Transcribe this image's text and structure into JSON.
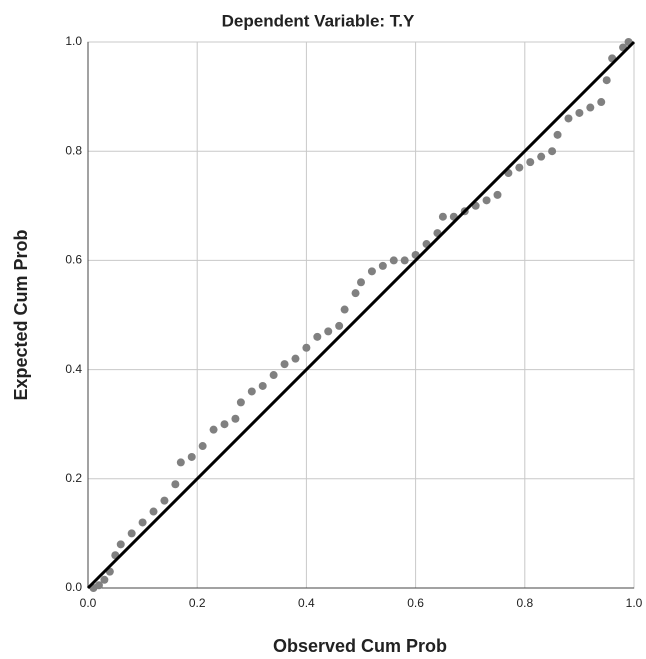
{
  "chart_data": {
    "type": "scatter",
    "title": "Dependent Variable: T.Y",
    "x_label": "Observed Cum Prob",
    "y_label": "Expected Cum Prob",
    "xlim": [
      0,
      1
    ],
    "ylim": [
      0,
      1
    ],
    "xticks": [
      {
        "value": 0,
        "label": "0.0"
      },
      0.2,
      0.4,
      0.6,
      0.8,
      {
        "value": 1,
        "label": "1.0"
      }
    ],
    "yticks": [
      {
        "value": 0,
        "label": "0.0"
      },
      0.2,
      0.4,
      0.6,
      0.8,
      {
        "value": 1,
        "label": "1.0"
      }
    ],
    "grid": true,
    "color": "#808080",
    "reference_color": "#000000",
    "x": [
      0.01,
      0.02,
      0.03,
      0.04,
      0.05,
      0.06,
      0.08,
      0.1,
      0.12,
      0.14,
      0.16,
      0.17,
      0.19,
      0.21,
      0.23,
      0.25,
      0.27,
      0.28,
      0.3,
      0.32,
      0.34,
      0.36,
      0.38,
      0.4,
      0.42,
      0.44,
      0.46,
      0.47,
      0.49,
      0.5,
      0.52,
      0.54,
      0.56,
      0.58,
      0.6,
      0.62,
      0.64,
      0.65,
      0.67,
      0.69,
      0.71,
      0.73,
      0.75,
      0.77,
      0.79,
      0.81,
      0.83,
      0.85,
      0.86,
      0.88,
      0.9,
      0.92,
      0.94,
      0.95,
      0.96,
      0.98,
      0.99
    ],
    "values": [
      0.0,
      0.005,
      0.015,
      0.03,
      0.06,
      0.08,
      0.1,
      0.12,
      0.14,
      0.16,
      0.19,
      0.23,
      0.24,
      0.26,
      0.29,
      0.3,
      0.31,
      0.34,
      0.36,
      0.37,
      0.39,
      0.41,
      0.42,
      0.44,
      0.46,
      0.47,
      0.48,
      0.51,
      0.54,
      0.56,
      0.58,
      0.59,
      0.6,
      0.6,
      0.61,
      0.63,
      0.65,
      0.68,
      0.68,
      0.69,
      0.7,
      0.71,
      0.72,
      0.76,
      0.77,
      0.78,
      0.79,
      0.8,
      0.83,
      0.86,
      0.87,
      0.88,
      0.89,
      0.93,
      0.97,
      0.99,
      1.0
    ]
  }
}
